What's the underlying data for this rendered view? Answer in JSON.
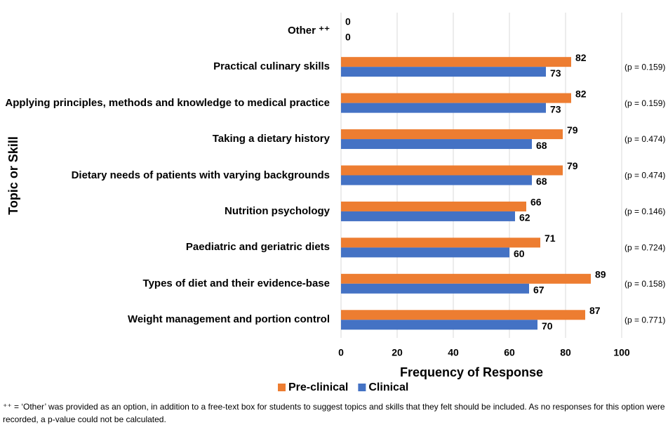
{
  "chart_data": {
    "type": "hbar",
    "categories": [
      "Other ⁺⁺",
      "Practical culinary skills",
      "Applying principles, methods and knowledge to medical practice",
      "Taking a dietary history",
      "Dietary needs of patients with varying backgrounds",
      "Nutrition psychology",
      "Paediatric and geriatric diets",
      "Types of diet and their evidence-base",
      "Weight management and portion control"
    ],
    "series": [
      {
        "name": "Pre-clinical",
        "color": "#ed7d31",
        "values": [
          0,
          82,
          82,
          79,
          79,
          66,
          71,
          89,
          87
        ]
      },
      {
        "name": "Clinical",
        "color": "#4472c4",
        "values": [
          0,
          73,
          73,
          68,
          68,
          62,
          60,
          67,
          70
        ]
      }
    ],
    "p_values": [
      null,
      "(p = 0.159)",
      "(p = 0.159)",
      "(p = 0.474)",
      "(p = 0.474)",
      "(p = 0.146)",
      "(p = 0.724)",
      "(p = 0.158)",
      "(p = 0.771)"
    ],
    "xlim": [
      0,
      100
    ],
    "xticks": [
      0,
      20,
      40,
      60,
      80,
      100
    ],
    "grid": true,
    "x_label": "Frequency of Response",
    "y_label": "Topic or Skill",
    "legend": "bottom",
    "footnote": "⁺⁺ = ‘Other’ was provided as an option, in addition to a free-text box for students to suggest topics and skills that they felt should be included. As no responses for this option were recorded, a p-value could not be calculated."
  }
}
